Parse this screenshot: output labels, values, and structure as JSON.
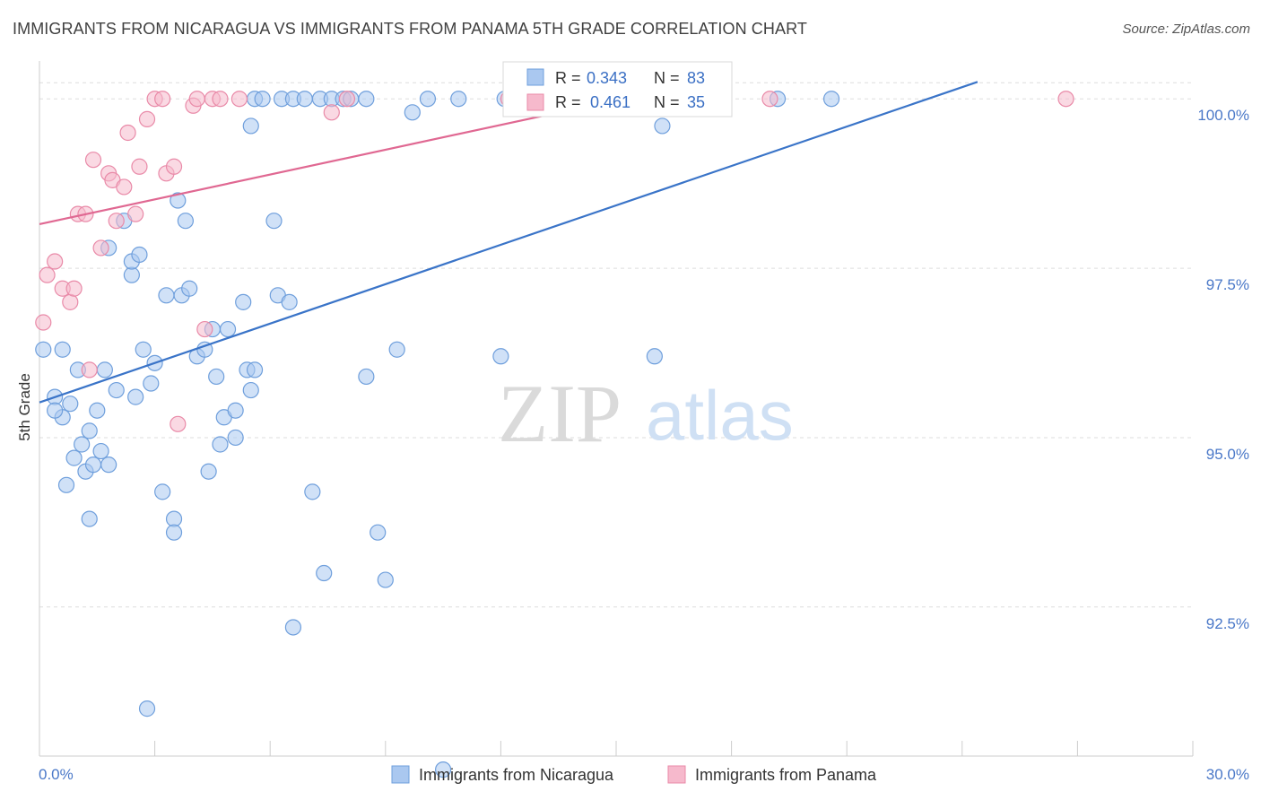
{
  "header": {
    "title": "IMMIGRANTS FROM NICARAGUA VS IMMIGRANTS FROM PANAMA 5TH GRADE CORRELATION CHART",
    "source": "Source: ZipAtlas.com"
  },
  "watermark": {
    "zip": "ZIP",
    "atlas": "atlas"
  },
  "stats": {
    "r_label": "R =",
    "n_label": "N =",
    "rows": [
      {
        "r": "0.343",
        "n": "83",
        "color": "#aac8f0"
      },
      {
        "r": "0.461",
        "n": "35",
        "color": "#f6b9cc"
      }
    ]
  },
  "chart_data": {
    "type": "scatter",
    "xlabel": "",
    "ylabel": "5th Grade",
    "xlim": [
      0,
      30
    ],
    "ylim": [
      90.3,
      100.4
    ],
    "x_tick_labels": [
      "0.0%",
      "30.0%"
    ],
    "y_ticks": [
      92.5,
      95.0,
      97.5,
      100.0
    ],
    "y_tick_labels": [
      "92.5%",
      "95.0%",
      "97.5%",
      "100.0%"
    ],
    "grid": true,
    "legend_position": "bottom-center",
    "series": [
      {
        "name": "Immigrants from Nicaragua",
        "color": "#aac8f0",
        "stroke": "#6f9fdc",
        "trend": {
          "x": [
            0,
            24.4
          ],
          "y": [
            95.52,
            100.25
          ],
          "color": "#3a74c8"
        },
        "points": [
          [
            0.1,
            96.3
          ],
          [
            0.4,
            95.6
          ],
          [
            0.6,
            95.3
          ],
          [
            0.4,
            95.4
          ],
          [
            0.6,
            96.3
          ],
          [
            0.7,
            94.3
          ],
          [
            0.8,
            95.5
          ],
          [
            0.9,
            94.7
          ],
          [
            1.0,
            96.0
          ],
          [
            1.1,
            94.9
          ],
          [
            1.2,
            94.5
          ],
          [
            1.3,
            95.1
          ],
          [
            1.3,
            93.8
          ],
          [
            1.4,
            94.6
          ],
          [
            1.5,
            95.4
          ],
          [
            1.6,
            94.8
          ],
          [
            1.7,
            96.0
          ],
          [
            1.8,
            94.6
          ],
          [
            1.8,
            97.8
          ],
          [
            2.0,
            95.7
          ],
          [
            2.2,
            98.2
          ],
          [
            2.4,
            97.4
          ],
          [
            2.4,
            97.6
          ],
          [
            2.5,
            95.6
          ],
          [
            2.6,
            97.7
          ],
          [
            2.7,
            96.3
          ],
          [
            2.8,
            91.0
          ],
          [
            2.9,
            95.8
          ],
          [
            3.0,
            96.1
          ],
          [
            3.2,
            94.2
          ],
          [
            3.3,
            97.1
          ],
          [
            3.5,
            93.8
          ],
          [
            3.5,
            93.6
          ],
          [
            3.6,
            98.5
          ],
          [
            3.7,
            97.1
          ],
          [
            3.8,
            98.2
          ],
          [
            3.9,
            97.2
          ],
          [
            4.1,
            96.2
          ],
          [
            4.3,
            96.3
          ],
          [
            4.4,
            94.5
          ],
          [
            4.5,
            96.6
          ],
          [
            4.6,
            95.9
          ],
          [
            4.7,
            94.9
          ],
          [
            4.8,
            95.3
          ],
          [
            4.9,
            96.6
          ],
          [
            5.1,
            95.4
          ],
          [
            5.1,
            95.0
          ],
          [
            5.3,
            97.0
          ],
          [
            5.4,
            96.0
          ],
          [
            5.5,
            95.7
          ],
          [
            5.6,
            96.0
          ],
          [
            5.5,
            99.6
          ],
          [
            5.6,
            100.0
          ],
          [
            5.8,
            100.0
          ],
          [
            6.1,
            98.2
          ],
          [
            6.2,
            97.1
          ],
          [
            6.3,
            100.0
          ],
          [
            6.5,
            97.0
          ],
          [
            6.6,
            92.2
          ],
          [
            6.6,
            100.0
          ],
          [
            6.9,
            100.0
          ],
          [
            7.1,
            94.2
          ],
          [
            7.3,
            100.0
          ],
          [
            7.4,
            93.0
          ],
          [
            7.6,
            100.0
          ],
          [
            7.9,
            100.0
          ],
          [
            8.1,
            100.0
          ],
          [
            8.5,
            100.0
          ],
          [
            8.5,
            95.9
          ],
          [
            8.8,
            93.6
          ],
          [
            9.0,
            92.9
          ],
          [
            9.3,
            96.3
          ],
          [
            9.7,
            99.8
          ],
          [
            10.1,
            100.0
          ],
          [
            10.5,
            90.1
          ],
          [
            10.9,
            100.0
          ],
          [
            12.0,
            96.2
          ],
          [
            12.1,
            100.0
          ],
          [
            13.0,
            100.0
          ],
          [
            16.0,
            96.2
          ],
          [
            16.2,
            99.6
          ],
          [
            19.2,
            100.0
          ],
          [
            20.6,
            100.0
          ]
        ]
      },
      {
        "name": "Immigrants from Panama",
        "color": "#f6b9cc",
        "stroke": "#e98aa8",
        "trend": {
          "x": [
            0,
            17.2
          ],
          "y": [
            98.15,
            100.25
          ],
          "color": "#e06892"
        },
        "points": [
          [
            0.1,
            96.7
          ],
          [
            0.2,
            97.4
          ],
          [
            0.4,
            97.6
          ],
          [
            0.6,
            97.2
          ],
          [
            0.8,
            97.0
          ],
          [
            0.9,
            97.2
          ],
          [
            1.0,
            98.3
          ],
          [
            1.2,
            98.3
          ],
          [
            1.3,
            96.0
          ],
          [
            1.4,
            99.1
          ],
          [
            1.6,
            97.8
          ],
          [
            1.8,
            98.9
          ],
          [
            1.9,
            98.8
          ],
          [
            2.0,
            98.2
          ],
          [
            2.2,
            98.7
          ],
          [
            2.3,
            99.5
          ],
          [
            2.5,
            98.3
          ],
          [
            2.6,
            99.0
          ],
          [
            2.8,
            99.7
          ],
          [
            3.0,
            100.0
          ],
          [
            3.2,
            100.0
          ],
          [
            3.3,
            98.9
          ],
          [
            3.5,
            99.0
          ],
          [
            3.6,
            95.2
          ],
          [
            4.0,
            99.9
          ],
          [
            4.1,
            100.0
          ],
          [
            4.3,
            96.6
          ],
          [
            4.5,
            100.0
          ],
          [
            4.7,
            100.0
          ],
          [
            5.2,
            100.0
          ],
          [
            7.6,
            99.8
          ],
          [
            8.0,
            100.0
          ],
          [
            12.2,
            100.0
          ],
          [
            19.0,
            100.0
          ],
          [
            26.7,
            100.0
          ]
        ]
      }
    ]
  }
}
